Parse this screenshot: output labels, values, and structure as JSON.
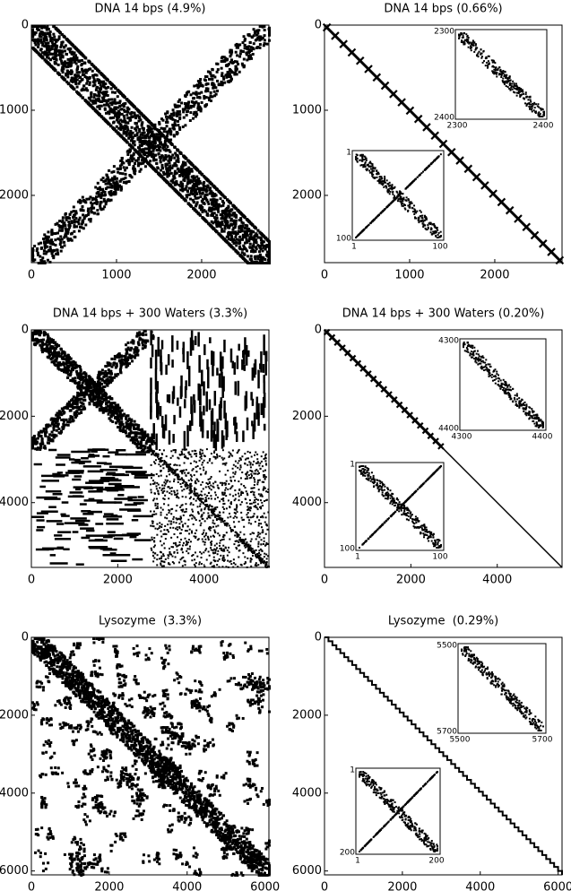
{
  "chart_data": [
    {
      "type": "spy",
      "title": "DNA 14 bps (4.9%)",
      "xlim": [
        0,
        2790
      ],
      "ylim": [
        0,
        2790
      ],
      "xticks": [
        0,
        1000,
        2000
      ],
      "yticks": [
        0,
        1000,
        2000
      ],
      "insets": []
    },
    {
      "type": "spy",
      "title": "DNA 14 bps (0.66%)",
      "xlim": [
        0,
        2790
      ],
      "ylim": [
        0,
        2790
      ],
      "xticks": [
        0,
        1000,
        2000
      ],
      "yticks": [
        0,
        1000,
        2000
      ],
      "insets": [
        {
          "xlim": [
            2300,
            2400
          ],
          "ylim": [
            2300,
            2400
          ]
        },
        {
          "xlim": [
            1,
            100
          ],
          "ylim": [
            1,
            100
          ]
        }
      ]
    },
    {
      "type": "spy",
      "title": "DNA 14 bps + 300 Waters (3.3%)",
      "xlim": [
        0,
        5500
      ],
      "ylim": [
        0,
        5500
      ],
      "xticks": [
        0,
        2000,
        4000
      ],
      "yticks": [
        0,
        2000,
        4000
      ],
      "insets": []
    },
    {
      "type": "spy",
      "title": "DNA 14 bps + 300 Waters (0.20%)",
      "xlim": [
        0,
        5500
      ],
      "ylim": [
        0,
        5500
      ],
      "xticks": [
        0,
        2000,
        4000
      ],
      "yticks": [
        0,
        2000,
        4000
      ],
      "insets": [
        {
          "xlim": [
            4300,
            4400
          ],
          "ylim": [
            4300,
            4400
          ]
        },
        {
          "xlim": [
            1,
            100
          ],
          "ylim": [
            1,
            100
          ]
        }
      ]
    },
    {
      "type": "spy",
      "title": "Lysozyme  (3.3%)",
      "xlim": [
        0,
        6100
      ],
      "ylim": [
        0,
        6100
      ],
      "xticks": [
        0,
        2000,
        4000,
        6000
      ],
      "yticks": [
        0,
        2000,
        4000,
        6000
      ],
      "insets": []
    },
    {
      "type": "spy",
      "title": "Lysozyme  (0.29%)",
      "xlim": [
        0,
        6100
      ],
      "ylim": [
        0,
        6100
      ],
      "xticks": [
        0,
        2000,
        4000,
        6000
      ],
      "yticks": [
        0,
        2000,
        4000,
        6000
      ],
      "insets": [
        {
          "xlim": [
            5500,
            5700
          ],
          "ylim": [
            5500,
            5700
          ]
        },
        {
          "xlim": [
            1,
            200
          ],
          "ylim": [
            1,
            200
          ]
        }
      ]
    }
  ]
}
